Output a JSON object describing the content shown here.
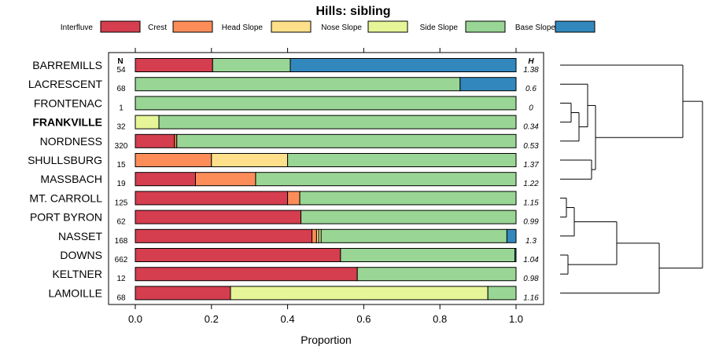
{
  "chart_data": {
    "type": "bar",
    "subtype": "stacked-horizontal-proportion",
    "title": "Hills: sibling",
    "xlabel": "Proportion",
    "ylabel": "",
    "xlim": [
      0,
      1
    ],
    "x_ticks": [
      "0.0",
      "0.2",
      "0.4",
      "0.6",
      "0.8",
      "1.0"
    ],
    "n_header": "N",
    "h_header": "H",
    "legend": [
      {
        "name": "Interfluve",
        "color": "#d53e4f"
      },
      {
        "name": "Crest",
        "color": "#fc8d59"
      },
      {
        "name": "Head Slope",
        "color": "#fee08b"
      },
      {
        "name": "Nose Slope",
        "color": "#e6f598"
      },
      {
        "name": "Side Slope",
        "color": "#99d594"
      },
      {
        "name": "Base Slope",
        "color": "#3288bd"
      }
    ],
    "rows": [
      {
        "label": "BARREMILLS",
        "n": "54",
        "h": "1.38",
        "bold": false,
        "values": [
          0.203,
          0,
          0,
          0,
          0.204,
          0.593
        ]
      },
      {
        "label": "LACRESCENT",
        "n": "68",
        "h": "0.6",
        "bold": false,
        "values": [
          0,
          0,
          0,
          0,
          0.853,
          0.147
        ]
      },
      {
        "label": "FRONTENAC",
        "n": "1",
        "h": "0",
        "bold": false,
        "values": [
          0,
          0,
          0,
          0,
          1.0,
          0
        ]
      },
      {
        "label": "FRANKVILLE",
        "n": "32",
        "h": "0.34",
        "bold": true,
        "values": [
          0,
          0,
          0,
          0.062,
          0.938,
          0
        ]
      },
      {
        "label": "NORDNESS",
        "n": "320",
        "h": "0.53",
        "bold": false,
        "values": [
          0.103,
          0.006,
          0,
          0,
          0.891,
          0
        ]
      },
      {
        "label": "SHULLSBURG",
        "n": "15",
        "h": "1.37",
        "bold": false,
        "values": [
          0,
          0.2,
          0.2,
          0,
          0.6,
          0
        ]
      },
      {
        "label": "MASSBACH",
        "n": "19",
        "h": "1.22",
        "bold": false,
        "values": [
          0.158,
          0.158,
          0,
          0,
          0.684,
          0
        ]
      },
      {
        "label": "MT. CARROLL",
        "n": "125",
        "h": "1.15",
        "bold": false,
        "values": [
          0.4,
          0.032,
          0,
          0,
          0.568,
          0
        ]
      },
      {
        "label": "PORT BYRON",
        "n": "62",
        "h": "0.99",
        "bold": false,
        "values": [
          0.435,
          0,
          0,
          0,
          0.565,
          0
        ]
      },
      {
        "label": "NASSET",
        "n": "168",
        "h": "1.3",
        "bold": false,
        "values": [
          0.464,
          0.012,
          0.006,
          0.006,
          0.488,
          0.024
        ]
      },
      {
        "label": "DOWNS",
        "n": "662",
        "h": "1.04",
        "bold": false,
        "values": [
          0.539,
          0,
          0,
          0,
          0.458,
          0.003
        ]
      },
      {
        "label": "KELTNER",
        "n": "12",
        "h": "0.98",
        "bold": false,
        "values": [
          0.583,
          0,
          0,
          0,
          0.417,
          0
        ]
      },
      {
        "label": "LAMOILLE",
        "n": "68",
        "h": "1.16",
        "bold": false,
        "values": [
          0.25,
          0,
          0,
          0.676,
          0.074,
          0
        ]
      }
    ]
  }
}
